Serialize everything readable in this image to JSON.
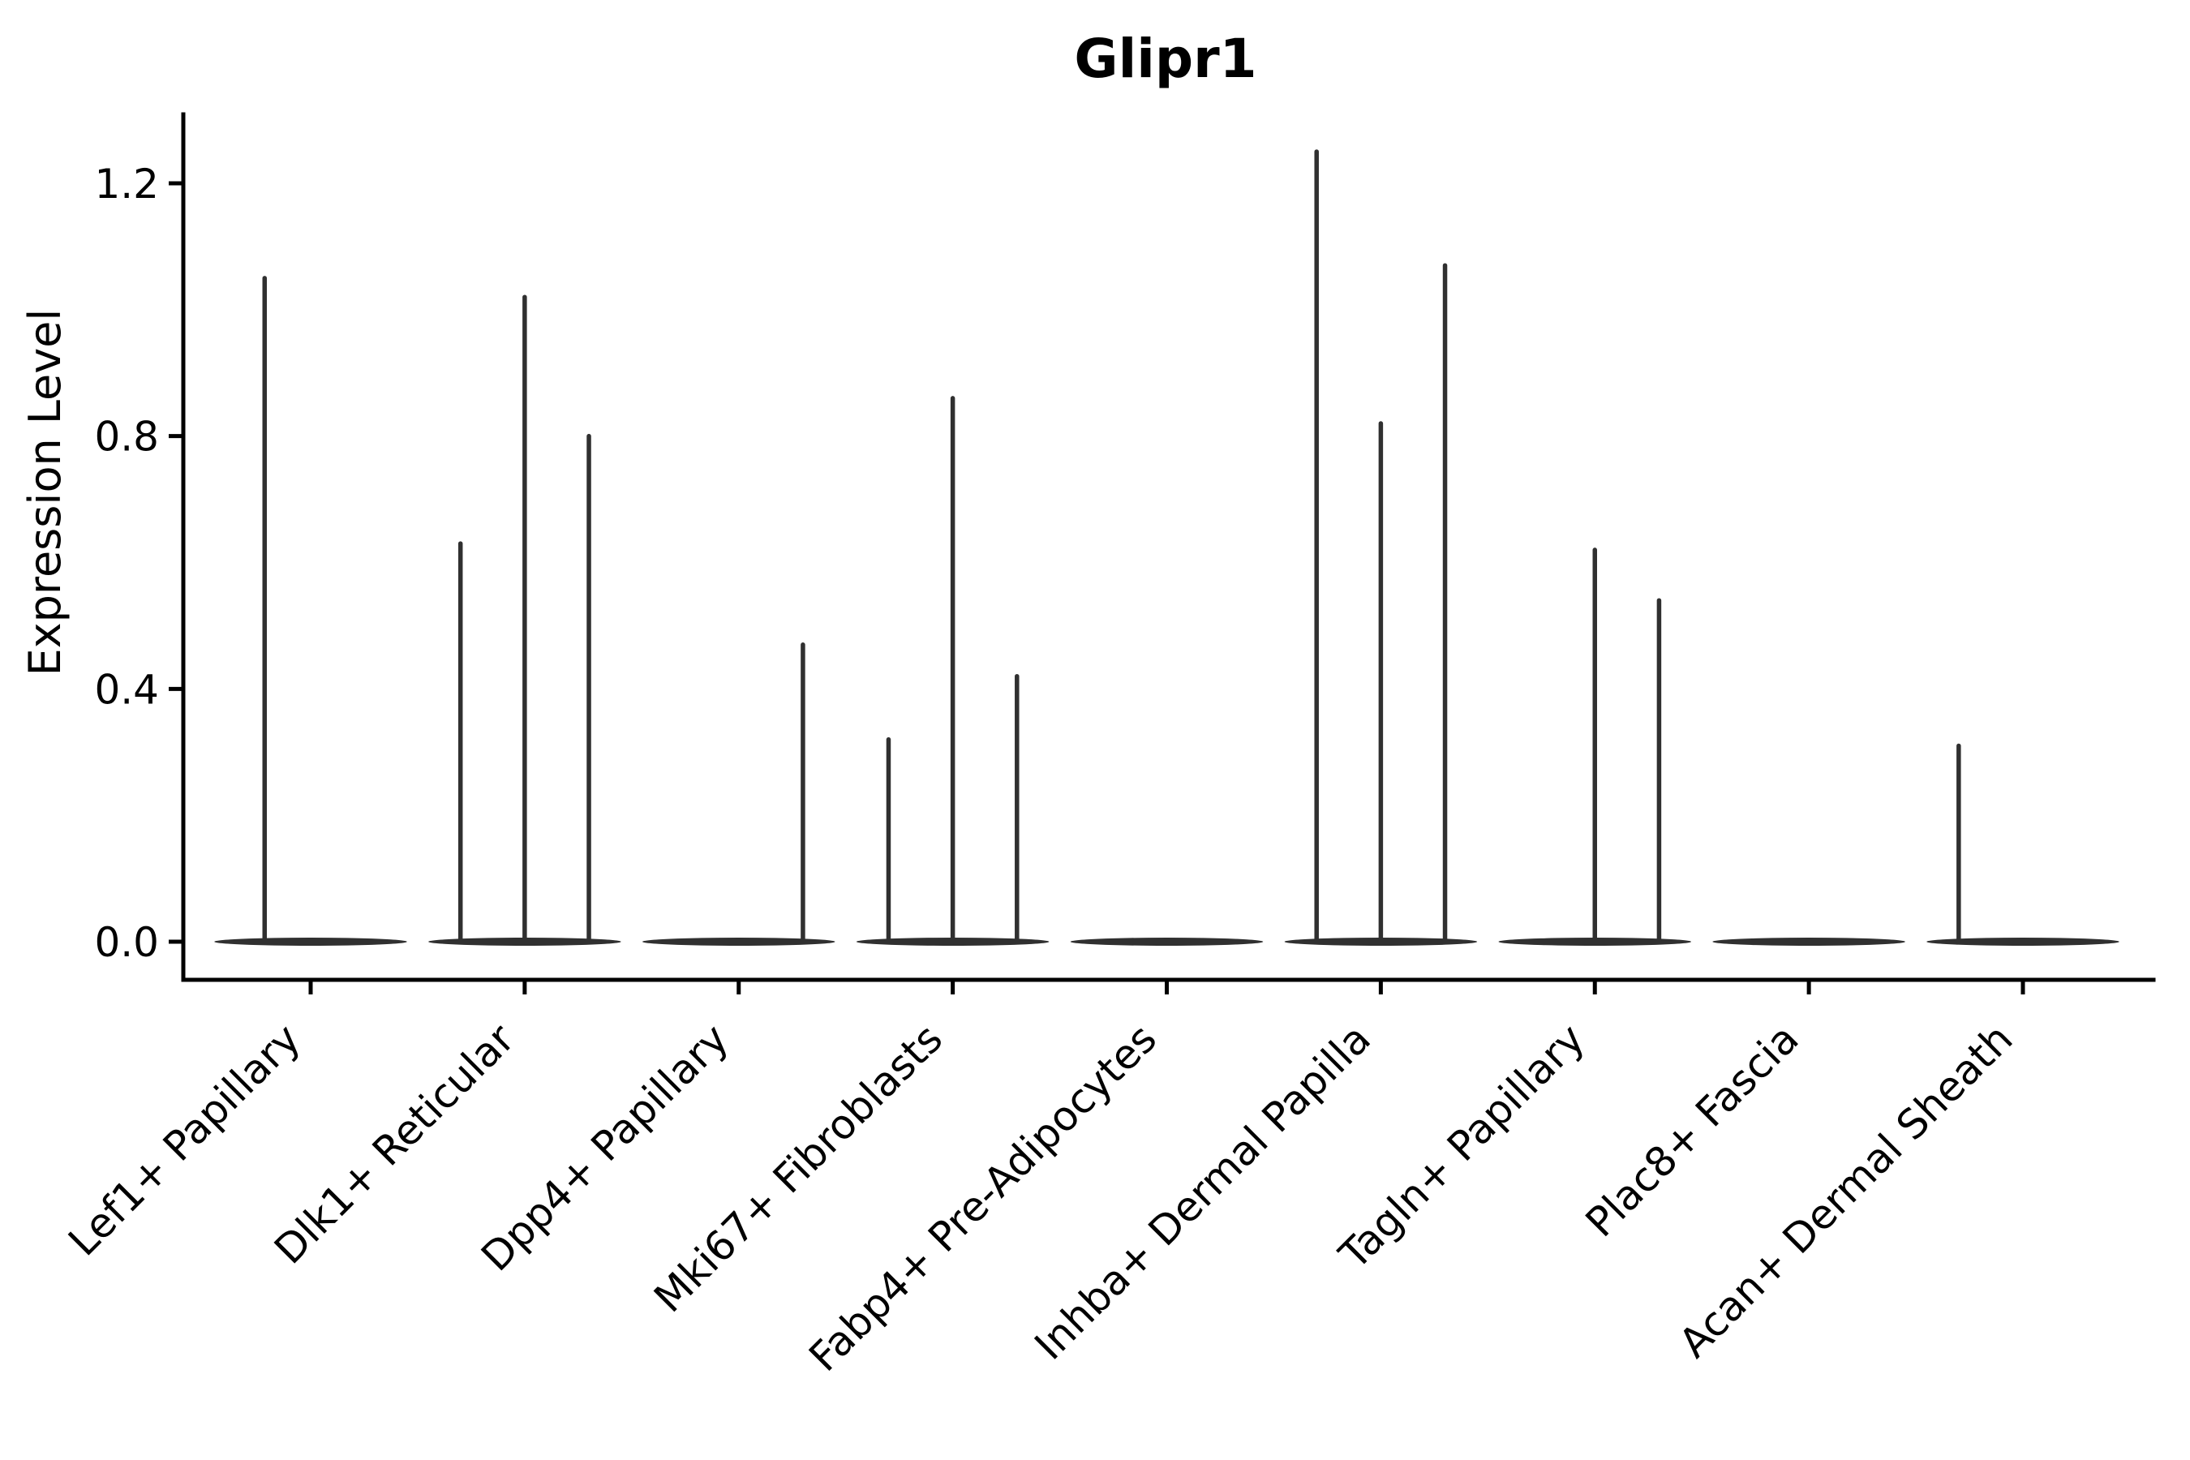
{
  "figure": {
    "background": "#ffffff",
    "axis_color": "#000000",
    "text_color": "#000000",
    "violin_color": "#303030"
  },
  "chart_data": {
    "type": "violin",
    "title": "Glipr1",
    "xlabel": "",
    "ylabel": "Expression Level",
    "grid": false,
    "legend_position": "none",
    "x_tick_rotation": 45,
    "ylim": [
      -0.06,
      1.31
    ],
    "yticks": [
      {
        "value": 0.0,
        "label": "0.0"
      },
      {
        "value": 0.4,
        "label": "0.4"
      },
      {
        "value": 0.8,
        "label": "0.8"
      },
      {
        "value": 1.2,
        "label": "1.2"
      }
    ],
    "categories": [
      "Lef1+ Papillary",
      "Dlk1+ Reticular",
      "Dpp4+ Papillary",
      "Mki67+ Fibroblasts",
      "Fabp4+ Pre-Adipocytes",
      "Inhba+ Dermal Papilla",
      "Tagln+ Papillary",
      "Plac8+ Fascia",
      "Acan+ Dermal Sheath"
    ],
    "base_half_width_frac": 0.45,
    "series": [
      {
        "category": "Lef1+ Papillary",
        "spikes": [
          {
            "pos": -0.215,
            "value": 1.05
          }
        ]
      },
      {
        "category": "Dlk1+ Reticular",
        "spikes": [
          {
            "pos": -0.3,
            "value": 0.63
          },
          {
            "pos": 0,
            "value": 1.02
          },
          {
            "pos": 0.3,
            "value": 0.8
          }
        ]
      },
      {
        "category": "Dpp4+ Papillary",
        "spikes": [
          {
            "pos": 0.3,
            "value": 0.47
          }
        ]
      },
      {
        "category": "Mki67+ Fibroblasts",
        "spikes": [
          {
            "pos": -0.3,
            "value": 0.32
          },
          {
            "pos": 0,
            "value": 0.86
          },
          {
            "pos": 0.3,
            "value": 0.42
          }
        ]
      },
      {
        "category": "Fabp4+ Pre-Adipocytes",
        "spikes": []
      },
      {
        "category": "Inhba+ Dermal Papilla",
        "spikes": [
          {
            "pos": -0.3,
            "value": 1.25
          },
          {
            "pos": 0,
            "value": 0.82
          },
          {
            "pos": 0.3,
            "value": 1.07
          }
        ]
      },
      {
        "category": "Tagln+ Papillary",
        "spikes": [
          {
            "pos": 0,
            "value": 0.62
          },
          {
            "pos": 0.3,
            "value": 0.54
          }
        ]
      },
      {
        "category": "Plac8+ Fascia",
        "spikes": []
      },
      {
        "category": "Acan+ Dermal Sheath",
        "spikes": [
          {
            "pos": -0.3,
            "value": 0.31
          }
        ]
      }
    ]
  }
}
